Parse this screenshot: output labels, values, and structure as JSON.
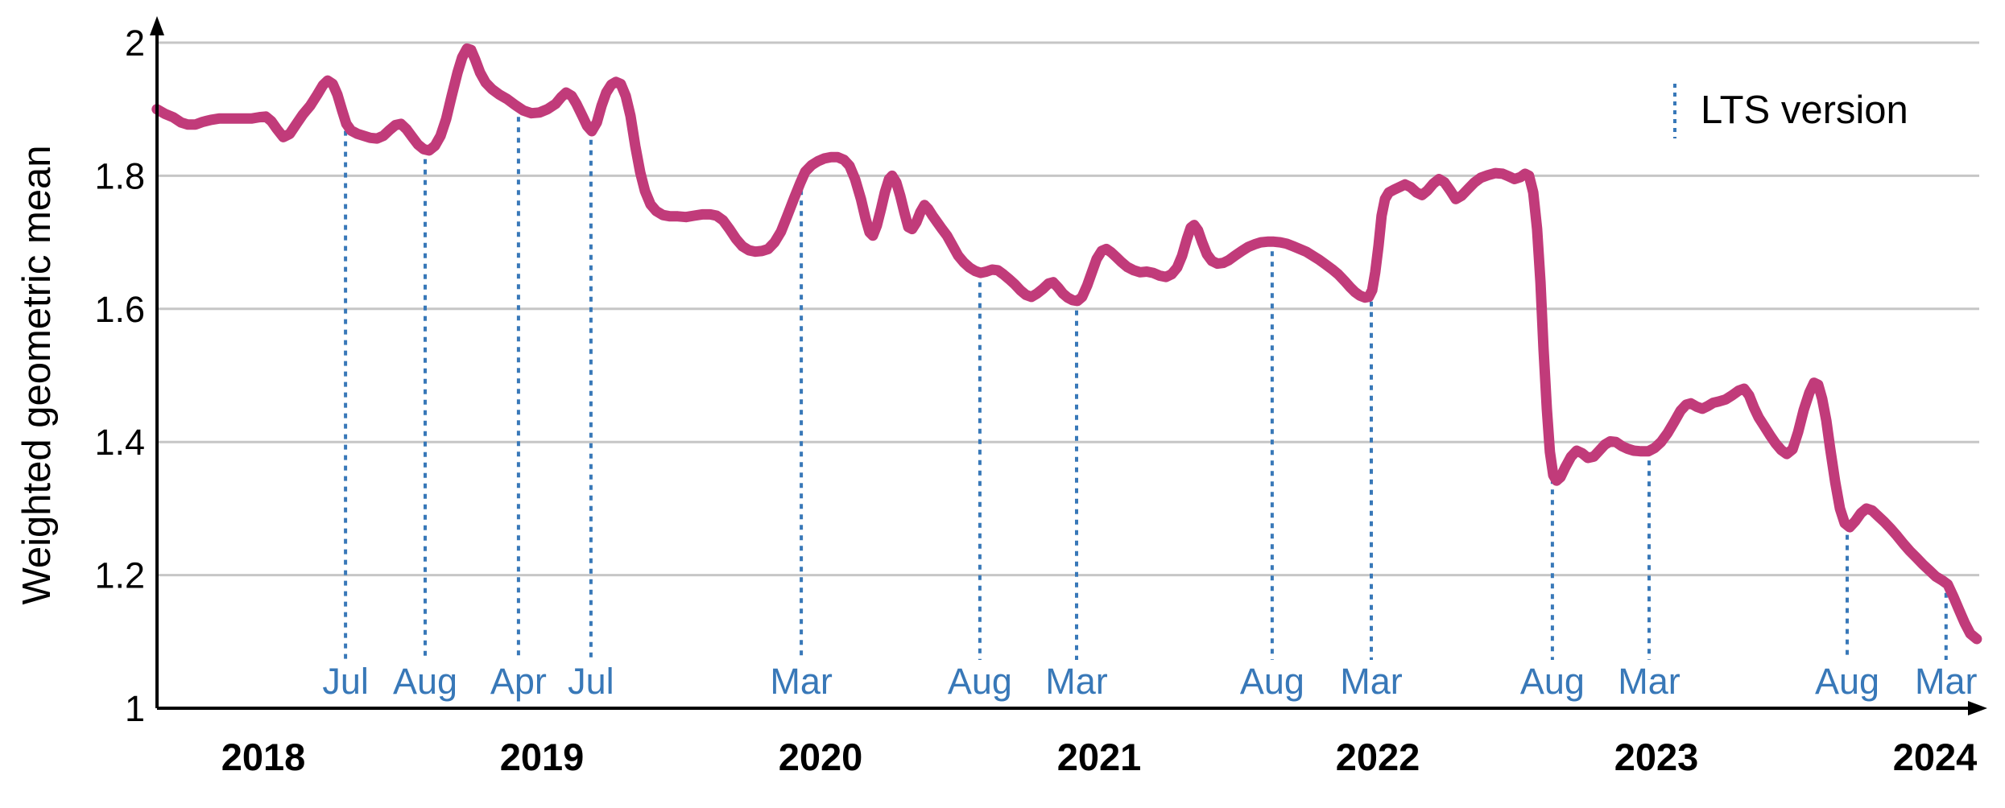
{
  "chart_data": {
    "type": "line",
    "title": "",
    "xlabel": "",
    "ylabel": "Weighted geometric mean",
    "xlim": [
      2017.618,
      2024.15
    ],
    "ylim": [
      1,
      2
    ],
    "grid": "horizontal-only",
    "legend_position": "top-right",
    "legend": {
      "label": "LTS version"
    },
    "yticks": [
      1,
      1.2,
      1.4,
      1.6,
      1.8,
      2
    ],
    "ytick_labels": [
      "1",
      "1.2",
      "1.4",
      "1.6",
      "1.8",
      "2"
    ],
    "xticks": [
      2018,
      2019,
      2020,
      2021,
      2022,
      2023,
      2024
    ],
    "xtick_labels": [
      "2018",
      "2019",
      "2020",
      "2021",
      "2022",
      "2023",
      "2024"
    ],
    "colors": {
      "series": "#c13b7a",
      "lts_marker": "#3878b8",
      "grid": "#c6c6c6",
      "axis": "#000000"
    },
    "lts_markers": [
      {
        "x": 2018.295,
        "label": "Jul"
      },
      {
        "x": 2018.581,
        "label": "Aug"
      },
      {
        "x": 2018.916,
        "label": "Apr"
      },
      {
        "x": 2019.176,
        "label": "Jul"
      },
      {
        "x": 2019.931,
        "label": "Mar"
      },
      {
        "x": 2020.572,
        "label": "Aug"
      },
      {
        "x": 2020.919,
        "label": "Mar"
      },
      {
        "x": 2021.621,
        "label": "Aug"
      },
      {
        "x": 2021.977,
        "label": "Mar"
      },
      {
        "x": 2022.627,
        "label": "Aug"
      },
      {
        "x": 2022.974,
        "label": "Mar"
      },
      {
        "x": 2023.685,
        "label": "Aug"
      },
      {
        "x": 2024.04,
        "label": "Mar"
      }
    ],
    "series": [
      {
        "name": "weighted-geometric-mean",
        "color": "#c13b7a",
        "x": [
          2017.618,
          2017.647,
          2017.676,
          2017.705,
          2017.728,
          2017.757,
          2017.783,
          2017.812,
          2017.841,
          2017.87,
          2017.899,
          2017.928,
          2017.957,
          2017.986,
          2018.009,
          2018.029,
          2018.049,
          2018.072,
          2018.095,
          2018.119,
          2018.142,
          2018.168,
          2018.194,
          2018.214,
          2018.231,
          2018.249,
          2018.266,
          2018.283,
          2018.298,
          2018.315,
          2018.338,
          2018.361,
          2018.384,
          2018.408,
          2018.431,
          2018.454,
          2018.474,
          2018.494,
          2018.514,
          2018.535,
          2018.555,
          2018.575,
          2018.595,
          2018.616,
          2018.636,
          2018.656,
          2018.676,
          2018.697,
          2018.714,
          2018.731,
          2018.746,
          2018.76,
          2018.778,
          2018.798,
          2018.821,
          2018.847,
          2018.876,
          2018.905,
          2018.934,
          2018.962,
          2018.991,
          2019.02,
          2019.049,
          2019.069,
          2019.087,
          2019.107,
          2019.124,
          2019.145,
          2019.162,
          2019.179,
          2019.197,
          2019.214,
          2019.231,
          2019.249,
          2019.266,
          2019.283,
          2019.301,
          2019.318,
          2019.335,
          2019.353,
          2019.37,
          2019.39,
          2019.41,
          2019.434,
          2019.46,
          2019.488,
          2019.517,
          2019.546,
          2019.575,
          2019.604,
          2019.627,
          2019.65,
          2019.673,
          2019.697,
          2019.72,
          2019.743,
          2019.766,
          2019.789,
          2019.812,
          2019.835,
          2019.858,
          2019.881,
          2019.905,
          2019.928,
          2019.945,
          2019.968,
          2019.991,
          2020.014,
          2020.038,
          2020.061,
          2020.084,
          2020.104,
          2020.124,
          2020.145,
          2020.162,
          2020.176,
          2020.188,
          2020.202,
          2020.217,
          2020.231,
          2020.246,
          2020.257,
          2020.272,
          2020.286,
          2020.301,
          2020.315,
          2020.329,
          2020.344,
          2020.358,
          2020.373,
          2020.387,
          2020.402,
          2020.419,
          2020.436,
          2020.454,
          2020.474,
          2020.494,
          2020.514,
          2020.535,
          2020.555,
          2020.575,
          2020.595,
          2020.616,
          2020.636,
          2020.656,
          2020.676,
          2020.697,
          2020.717,
          2020.737,
          2020.757,
          2020.777,
          2020.798,
          2020.818,
          2020.835,
          2020.853,
          2020.87,
          2020.887,
          2020.905,
          2020.922,
          2020.939,
          2020.957,
          2020.974,
          2020.991,
          2021.009,
          2021.026,
          2021.043,
          2021.061,
          2021.081,
          2021.101,
          2021.124,
          2021.147,
          2021.171,
          2021.194,
          2021.217,
          2021.24,
          2021.26,
          2021.28,
          2021.298,
          2021.315,
          2021.329,
          2021.341,
          2021.355,
          2021.37,
          2021.387,
          2021.405,
          2021.425,
          2021.445,
          2021.465,
          2021.488,
          2021.512,
          2021.535,
          2021.558,
          2021.581,
          2021.604,
          2021.627,
          2021.65,
          2021.673,
          2021.697,
          2021.72,
          2021.743,
          2021.766,
          2021.789,
          2021.812,
          2021.835,
          2021.858,
          2021.881,
          2021.902,
          2021.919,
          2021.936,
          2021.954,
          2021.968,
          2021.98,
          2021.991,
          2022.003,
          2022.014,
          2022.026,
          2022.04,
          2022.058,
          2022.078,
          2022.098,
          2022.118,
          2022.139,
          2022.159,
          2022.179,
          2022.199,
          2022.22,
          2022.24,
          2022.26,
          2022.28,
          2022.301,
          2022.324,
          2022.347,
          2022.37,
          2022.396,
          2022.422,
          2022.448,
          2022.471,
          2022.491,
          2022.512,
          2022.529,
          2022.543,
          2022.558,
          2022.572,
          2022.584,
          2022.595,
          2022.607,
          2022.618,
          2022.63,
          2022.642,
          2022.656,
          2022.673,
          2022.694,
          2022.714,
          2022.734,
          2022.754,
          2022.775,
          2022.795,
          2022.815,
          2022.835,
          2022.855,
          2022.876,
          2022.896,
          2022.919,
          2022.945,
          2022.971,
          2022.994,
          2023.017,
          2023.04,
          2023.064,
          2023.087,
          2023.107,
          2023.124,
          2023.145,
          2023.165,
          2023.185,
          2023.205,
          2023.225,
          2023.249,
          2023.272,
          2023.295,
          2023.315,
          2023.333,
          2023.35,
          2023.367,
          2023.387,
          2023.408,
          2023.428,
          2023.448,
          2023.468,
          2023.489,
          2023.509,
          2023.529,
          2023.549,
          2023.566,
          2023.581,
          2023.595,
          2023.61,
          2023.624,
          2023.642,
          2023.659,
          2023.676,
          2023.694,
          2023.714,
          2023.734,
          2023.754,
          2023.775,
          2023.795,
          2023.818,
          2023.841,
          2023.864,
          2023.887,
          2023.91,
          2023.934,
          2023.957,
          2023.98,
          2024.003,
          2024.026,
          2024.046,
          2024.066,
          2024.086,
          2024.107,
          2024.127,
          2024.15
        ],
        "y": [
          1.9,
          1.893,
          1.888,
          1.88,
          1.877,
          1.877,
          1.881,
          1.884,
          1.886,
          1.886,
          1.886,
          1.886,
          1.886,
          1.888,
          1.889,
          1.882,
          1.87,
          1.858,
          1.863,
          1.878,
          1.892,
          1.905,
          1.922,
          1.936,
          1.943,
          1.938,
          1.922,
          1.898,
          1.878,
          1.868,
          1.863,
          1.86,
          1.857,
          1.856,
          1.86,
          1.869,
          1.876,
          1.878,
          1.87,
          1.858,
          1.847,
          1.84,
          1.838,
          1.845,
          1.86,
          1.885,
          1.92,
          1.955,
          1.978,
          1.991,
          1.989,
          1.975,
          1.955,
          1.94,
          1.93,
          1.922,
          1.915,
          1.906,
          1.898,
          1.894,
          1.895,
          1.9,
          1.908,
          1.918,
          1.925,
          1.92,
          1.908,
          1.89,
          1.875,
          1.867,
          1.88,
          1.905,
          1.925,
          1.937,
          1.941,
          1.938,
          1.92,
          1.89,
          1.845,
          1.805,
          1.777,
          1.757,
          1.747,
          1.741,
          1.739,
          1.739,
          1.738,
          1.74,
          1.742,
          1.742,
          1.74,
          1.733,
          1.72,
          1.705,
          1.694,
          1.688,
          1.686,
          1.687,
          1.69,
          1.7,
          1.716,
          1.74,
          1.766,
          1.79,
          1.806,
          1.816,
          1.822,
          1.826,
          1.828,
          1.828,
          1.824,
          1.815,
          1.795,
          1.765,
          1.735,
          1.715,
          1.71,
          1.725,
          1.75,
          1.775,
          1.795,
          1.8,
          1.79,
          1.77,
          1.745,
          1.723,
          1.72,
          1.73,
          1.745,
          1.756,
          1.75,
          1.74,
          1.73,
          1.72,
          1.71,
          1.695,
          1.68,
          1.67,
          1.662,
          1.657,
          1.654,
          1.656,
          1.659,
          1.658,
          1.652,
          1.645,
          1.637,
          1.628,
          1.621,
          1.618,
          1.623,
          1.63,
          1.638,
          1.64,
          1.632,
          1.623,
          1.617,
          1.613,
          1.612,
          1.618,
          1.635,
          1.655,
          1.675,
          1.687,
          1.69,
          1.685,
          1.678,
          1.67,
          1.663,
          1.658,
          1.655,
          1.656,
          1.654,
          1.65,
          1.648,
          1.652,
          1.662,
          1.68,
          1.705,
          1.722,
          1.726,
          1.718,
          1.7,
          1.682,
          1.672,
          1.668,
          1.669,
          1.673,
          1.68,
          1.687,
          1.693,
          1.697,
          1.7,
          1.701,
          1.701,
          1.7,
          1.698,
          1.694,
          1.69,
          1.686,
          1.68,
          1.674,
          1.667,
          1.66,
          1.652,
          1.642,
          1.632,
          1.625,
          1.62,
          1.617,
          1.618,
          1.628,
          1.655,
          1.695,
          1.74,
          1.765,
          1.775,
          1.779,
          1.783,
          1.787,
          1.783,
          1.775,
          1.771,
          1.778,
          1.788,
          1.795,
          1.79,
          1.778,
          1.765,
          1.77,
          1.78,
          1.79,
          1.797,
          1.801,
          1.804,
          1.803,
          1.799,
          1.795,
          1.798,
          1.803,
          1.8,
          1.775,
          1.72,
          1.64,
          1.54,
          1.45,
          1.385,
          1.35,
          1.342,
          1.347,
          1.362,
          1.378,
          1.387,
          1.383,
          1.376,
          1.378,
          1.387,
          1.396,
          1.401,
          1.4,
          1.394,
          1.39,
          1.387,
          1.386,
          1.386,
          1.391,
          1.4,
          1.413,
          1.43,
          1.447,
          1.456,
          1.458,
          1.453,
          1.45,
          1.454,
          1.459,
          1.461,
          1.464,
          1.47,
          1.477,
          1.48,
          1.47,
          1.452,
          1.437,
          1.424,
          1.41,
          1.398,
          1.388,
          1.382,
          1.389,
          1.415,
          1.448,
          1.474,
          1.489,
          1.486,
          1.465,
          1.432,
          1.39,
          1.34,
          1.3,
          1.278,
          1.272,
          1.281,
          1.293,
          1.3,
          1.297,
          1.289,
          1.28,
          1.27,
          1.259,
          1.247,
          1.236,
          1.226,
          1.216,
          1.207,
          1.198,
          1.192,
          1.186,
          1.168,
          1.148,
          1.128,
          1.112,
          1.104
        ]
      }
    ]
  }
}
